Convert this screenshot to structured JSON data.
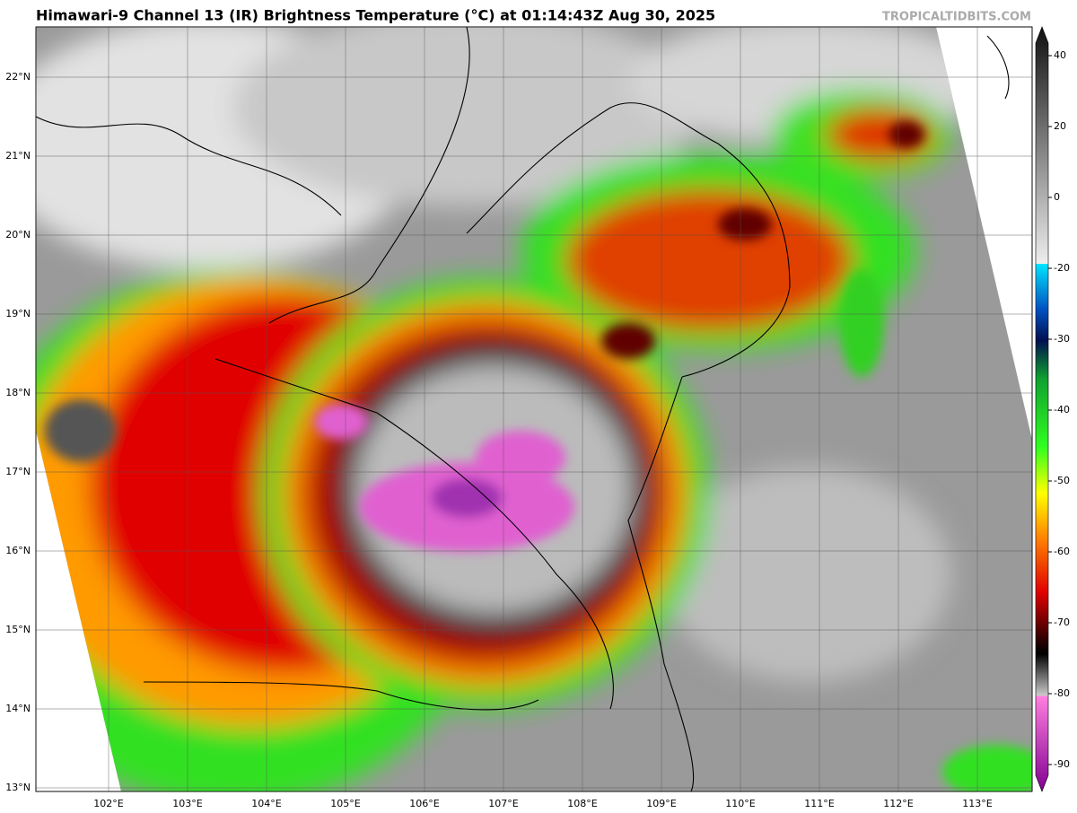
{
  "header": {
    "title": "Himawari-9 Channel 13 (IR) Brightness Temperature (°C) at 01:14:43Z Aug 30, 2025",
    "source": "TROPICALTIDBITS.COM"
  },
  "map": {
    "latitude_labels": [
      "22°N",
      "21°N",
      "20°N",
      "19°N",
      "18°N",
      "17°N",
      "16°N",
      "15°N",
      "14°N",
      "13°N"
    ],
    "longitude_labels": [
      "102°E",
      "103°E",
      "104°E",
      "105°E",
      "106°E",
      "107°E",
      "108°E",
      "109°E",
      "110°E",
      "111°E",
      "112°E",
      "113°E"
    ]
  },
  "colorbar": {
    "ticks": [
      40,
      20,
      0,
      -20,
      -30,
      -40,
      -50,
      -60,
      -70,
      -80,
      -90
    ]
  }
}
